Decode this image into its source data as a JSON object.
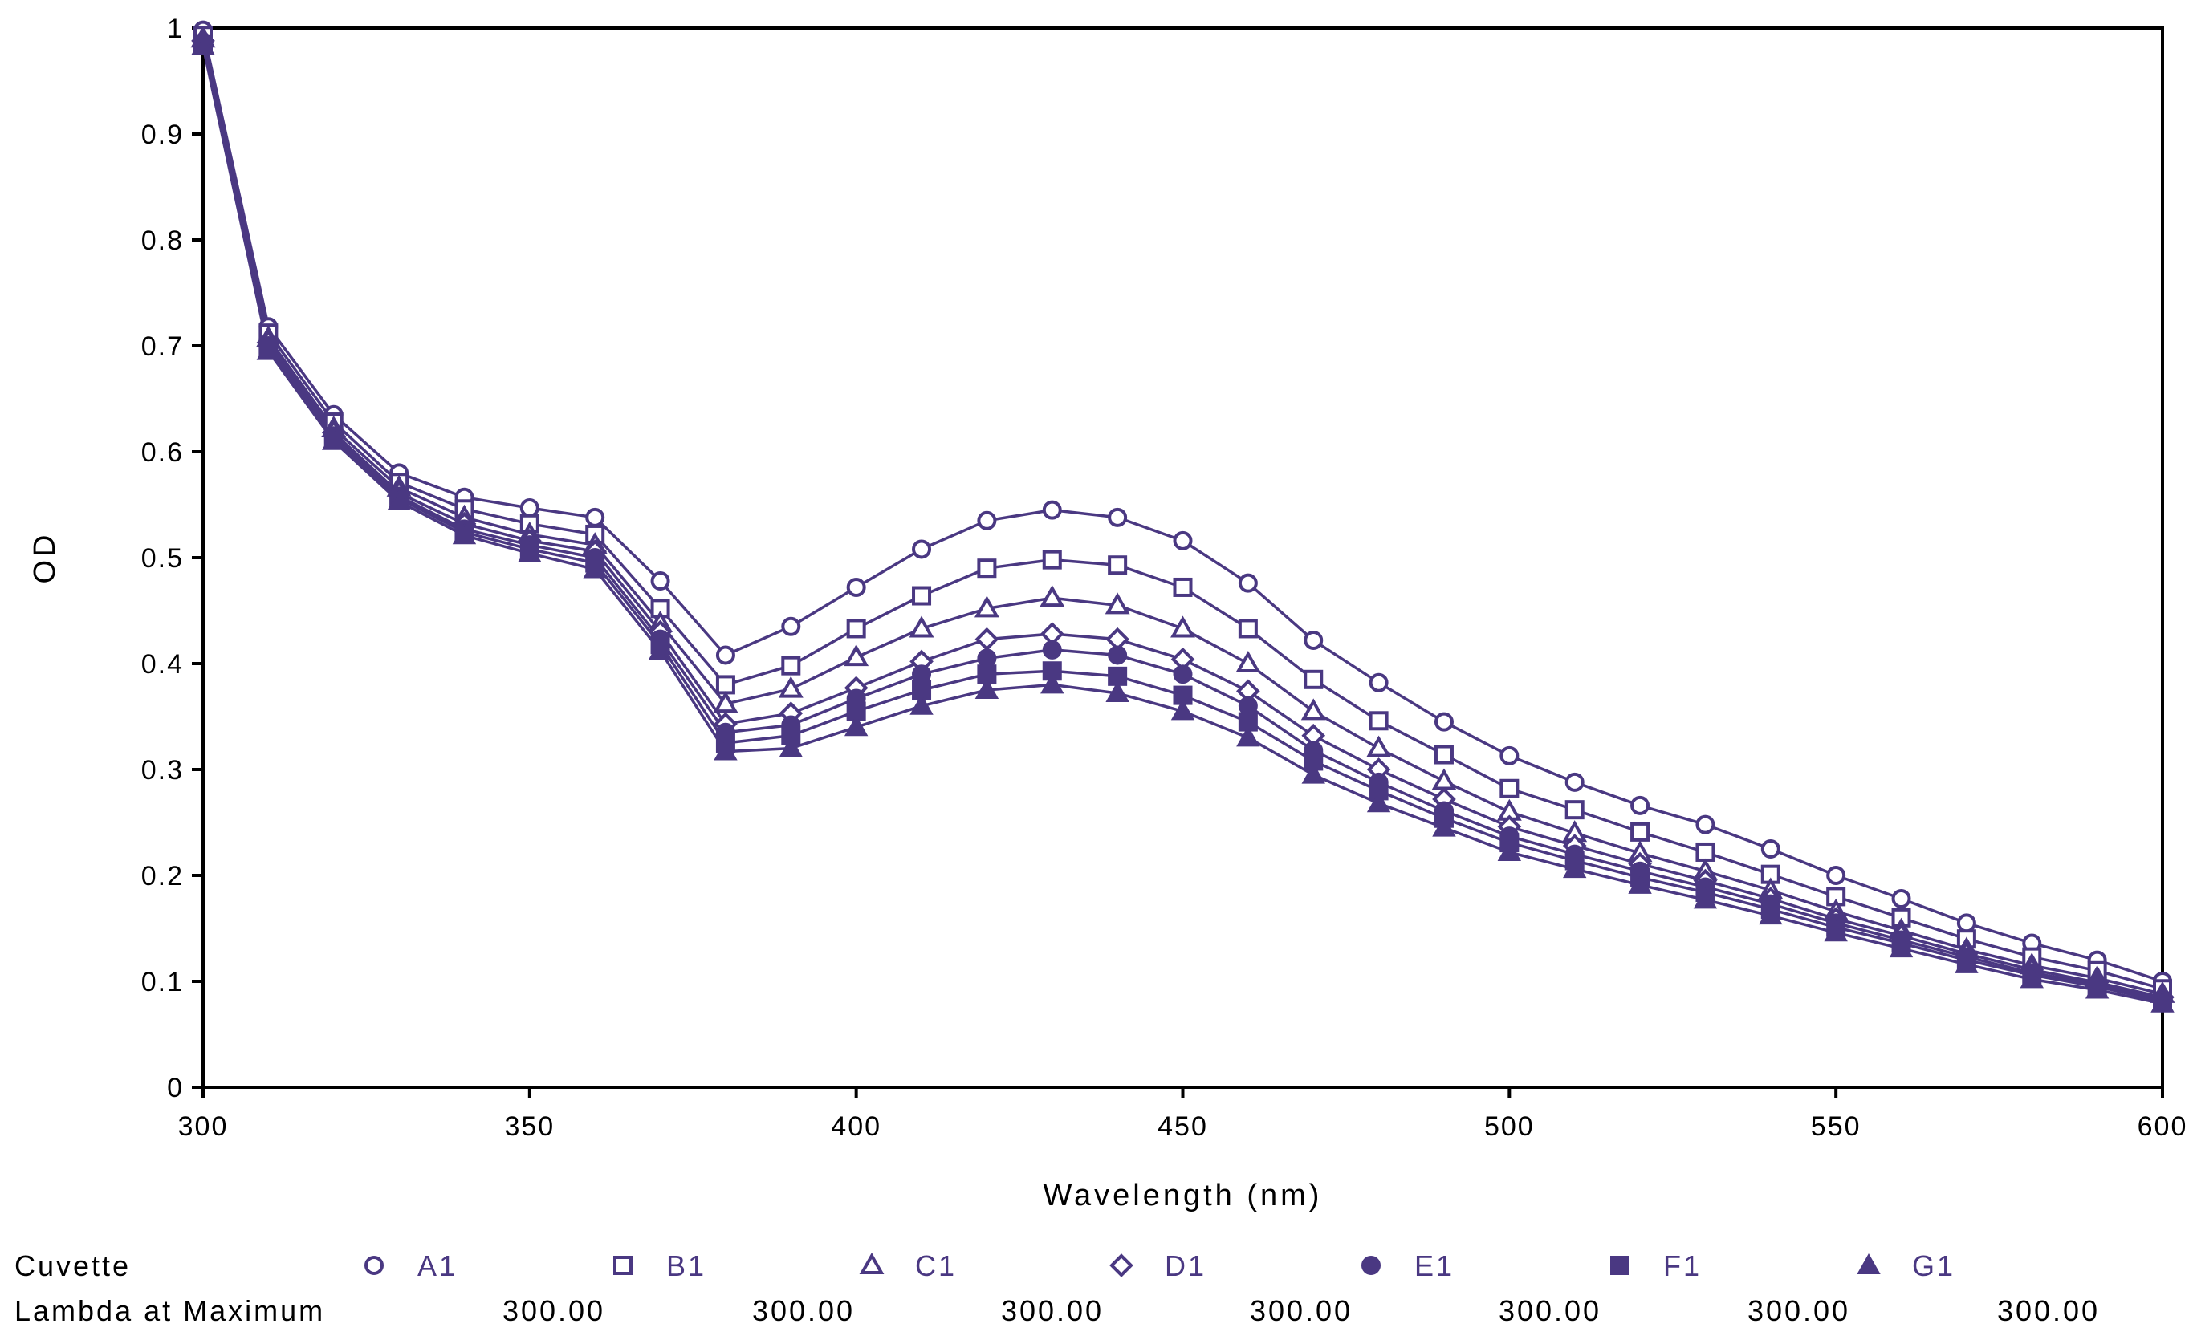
{
  "chart_data": {
    "type": "line",
    "title": "",
    "xlabel": "Wavelength (nm)",
    "ylabel": "OD",
    "xlim": [
      300,
      600
    ],
    "ylim": [
      0,
      1
    ],
    "x_ticks": [
      300,
      350,
      400,
      450,
      500,
      550,
      600
    ],
    "y_ticks": [
      0,
      0.1,
      0.2,
      0.3,
      0.4,
      0.5,
      0.6,
      0.7,
      0.8,
      0.9,
      1
    ],
    "y_tick_labels": [
      "0",
      "0.1",
      "0.2",
      "0.3",
      "0.4",
      "0.5",
      "0.6",
      "0.7",
      "0.8",
      "0.9",
      "1"
    ],
    "grid": false,
    "line_color": "#4a3882",
    "x": [
      300,
      310,
      320,
      330,
      340,
      350,
      360,
      370,
      380,
      390,
      400,
      410,
      420,
      430,
      440,
      450,
      460,
      470,
      480,
      490,
      500,
      510,
      520,
      530,
      540,
      550,
      560,
      570,
      580,
      590,
      600
    ],
    "series": [
      {
        "name": "A1",
        "marker": "circle-open",
        "values": [
          0.998,
          0.718,
          0.635,
          0.58,
          0.557,
          0.547,
          0.538,
          0.478,
          0.408,
          0.435,
          0.472,
          0.508,
          0.535,
          0.545,
          0.538,
          0.516,
          0.476,
          0.422,
          0.382,
          0.345,
          0.313,
          0.288,
          0.266,
          0.248,
          0.225,
          0.2,
          0.178,
          0.155,
          0.136,
          0.12,
          0.1
        ]
      },
      {
        "name": "B1",
        "marker": "square-open",
        "values": [
          0.993,
          0.712,
          0.628,
          0.571,
          0.546,
          0.532,
          0.522,
          0.452,
          0.38,
          0.398,
          0.433,
          0.464,
          0.49,
          0.498,
          0.493,
          0.472,
          0.433,
          0.385,
          0.346,
          0.314,
          0.282,
          0.262,
          0.241,
          0.222,
          0.201,
          0.18,
          0.16,
          0.14,
          0.123,
          0.11,
          0.093
        ]
      },
      {
        "name": "C1",
        "marker": "triangle-open",
        "values": [
          0.99,
          0.707,
          0.622,
          0.566,
          0.538,
          0.522,
          0.512,
          0.438,
          0.362,
          0.376,
          0.406,
          0.433,
          0.452,
          0.462,
          0.455,
          0.433,
          0.4,
          0.355,
          0.32,
          0.289,
          0.26,
          0.24,
          0.221,
          0.204,
          0.186,
          0.166,
          0.148,
          0.13,
          0.115,
          0.103,
          0.088
        ]
      },
      {
        "name": "D1",
        "marker": "diamond-open",
        "values": [
          0.988,
          0.703,
          0.618,
          0.561,
          0.532,
          0.516,
          0.506,
          0.43,
          0.343,
          0.353,
          0.377,
          0.402,
          0.423,
          0.428,
          0.423,
          0.404,
          0.374,
          0.332,
          0.3,
          0.272,
          0.246,
          0.228,
          0.211,
          0.195,
          0.178,
          0.159,
          0.143,
          0.126,
          0.111,
          0.099,
          0.085
        ]
      },
      {
        "name": "E1",
        "marker": "circle-filled",
        "values": [
          0.986,
          0.7,
          0.615,
          0.558,
          0.527,
          0.512,
          0.5,
          0.423,
          0.335,
          0.342,
          0.367,
          0.39,
          0.405,
          0.413,
          0.408,
          0.39,
          0.36,
          0.318,
          0.288,
          0.261,
          0.237,
          0.22,
          0.204,
          0.189,
          0.173,
          0.155,
          0.139,
          0.123,
          0.108,
          0.097,
          0.083
        ]
      },
      {
        "name": "F1",
        "marker": "square-filled",
        "values": [
          0.985,
          0.698,
          0.612,
          0.556,
          0.524,
          0.508,
          0.495,
          0.418,
          0.325,
          0.332,
          0.355,
          0.375,
          0.39,
          0.393,
          0.388,
          0.37,
          0.345,
          0.308,
          0.28,
          0.254,
          0.231,
          0.214,
          0.198,
          0.184,
          0.168,
          0.151,
          0.136,
          0.12,
          0.106,
          0.095,
          0.081
        ]
      },
      {
        "name": "G1",
        "marker": "triangle-filled",
        "values": [
          0.983,
          0.695,
          0.61,
          0.553,
          0.521,
          0.504,
          0.489,
          0.412,
          0.317,
          0.32,
          0.34,
          0.36,
          0.375,
          0.38,
          0.372,
          0.355,
          0.33,
          0.295,
          0.268,
          0.245,
          0.222,
          0.206,
          0.191,
          0.177,
          0.162,
          0.146,
          0.131,
          0.116,
          0.102,
          0.092,
          0.079
        ]
      }
    ],
    "legend": {
      "label": "Cuvette",
      "lambda_label": "Lambda at Maximum",
      "lambda_values": [
        "300.00",
        "300.00",
        "300.00",
        "300.00",
        "300.00",
        "300.00",
        "300.00"
      ]
    }
  }
}
